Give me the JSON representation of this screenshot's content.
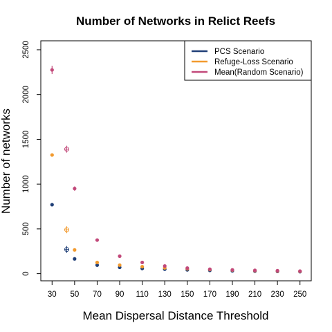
{
  "chart_data": {
    "type": "scatter",
    "title": "Number of Networks in Relict Reefs",
    "xlabel": "Mean Dispersal Distance Threshold",
    "ylabel": "Number of networks",
    "x_ticks": [
      30,
      50,
      70,
      90,
      110,
      130,
      150,
      170,
      190,
      210,
      230,
      250
    ],
    "y_ticks": [
      0,
      500,
      1000,
      1500,
      2000,
      2500
    ],
    "xlim": [
      20,
      260
    ],
    "ylim": [
      -80,
      2600
    ],
    "legend_position": "top-right",
    "series": [
      {
        "name": "PCS Scenario",
        "color": "#1f3f77",
        "marker": "dot",
        "points": [
          [
            30,
            770
          ],
          [
            50,
            165
          ],
          [
            70,
            95
          ],
          [
            90,
            70
          ],
          [
            110,
            58
          ],
          [
            130,
            50
          ],
          [
            150,
            42
          ],
          [
            170,
            37
          ],
          [
            190,
            32
          ],
          [
            210,
            28
          ],
          [
            230,
            25
          ],
          [
            250,
            22
          ]
        ],
        "open_points": [
          [
            43,
            270
          ]
        ]
      },
      {
        "name": "Refuge-Loss Scenario",
        "color": "#f29a2e",
        "marker": "dot",
        "points": [
          [
            30,
            1325
          ],
          [
            50,
            265
          ],
          [
            70,
            125
          ],
          [
            90,
            95
          ],
          [
            110,
            78
          ],
          [
            130,
            65
          ],
          [
            150,
            55
          ],
          [
            170,
            46
          ],
          [
            190,
            40
          ],
          [
            210,
            34
          ],
          [
            230,
            30
          ],
          [
            250,
            26
          ]
        ],
        "open_points": [
          [
            43,
            490
          ]
        ]
      },
      {
        "name": "Mean(Random Scenario)",
        "color": "#c2497a",
        "marker": "dot-with-error-bar",
        "points": [
          [
            30,
            2275
          ],
          [
            50,
            950
          ],
          [
            70,
            375
          ],
          [
            90,
            195
          ],
          [
            110,
            125
          ],
          [
            130,
            85
          ],
          [
            150,
            62
          ],
          [
            170,
            50
          ],
          [
            190,
            42
          ],
          [
            210,
            37
          ],
          [
            230,
            33
          ],
          [
            250,
            28
          ]
        ],
        "open_points": [
          [
            43,
            1390
          ]
        ]
      }
    ]
  }
}
